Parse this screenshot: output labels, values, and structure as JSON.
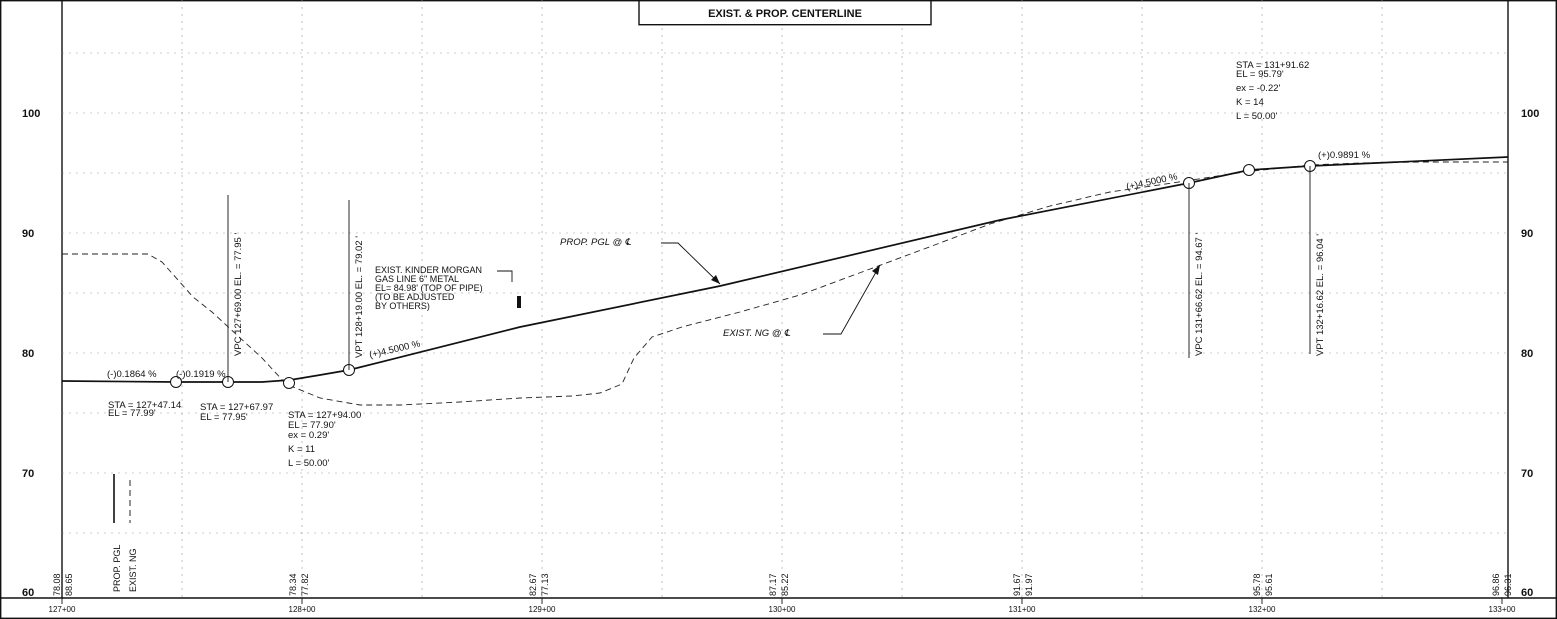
{
  "title": "EXIST. & PROP. CENTERLINE",
  "axis": {
    "stations": [
      "127+00",
      "128+00",
      "129+00",
      "130+00",
      "131+00",
      "132+00",
      "133+00"
    ],
    "elevations_left": [
      "100",
      "90",
      "80",
      "70",
      "60"
    ],
    "elevations_right": [
      "100",
      "90",
      "80",
      "70",
      "60"
    ]
  },
  "bottom_elevations": [
    {
      "a": "78.08",
      "b": "88.65"
    },
    {
      "a": "78.34",
      "b": "77.82"
    },
    {
      "a": "82.67",
      "b": "77.13"
    },
    {
      "a": "87.17",
      "b": "85.22"
    },
    {
      "a": "91.67",
      "b": "91.97"
    },
    {
      "a": "95.78",
      "b": "95.61"
    },
    {
      "a": "96.86",
      "b": "96.31"
    }
  ],
  "legend": {
    "pgl": "PROP. PGL",
    "ng": "EXIST. NG"
  },
  "callouts": {
    "prop_pgl": "PROP. PGL @ ℄",
    "exist_ng": "EXIST. NG @ ℄",
    "kinder": [
      "EXIST. KINDER MORGAN",
      "GAS LINE 6\" METAL",
      "EL= 84.98' (TOP OF PIPE)",
      "(TO BE ADJUSTED",
      "BY OTHERS)"
    ]
  },
  "grades": {
    "g1": "(-)0.1864 %",
    "g2": "(-)0.1919 %",
    "g3": "(+)4.5000 %",
    "g4": "(+)4.5000 %",
    "g5": "(+)0.9891 %"
  },
  "vertical_labels": {
    "vpc1": "VPC 127+69.00 EL. = 77.95 '",
    "vpt1": "VPT 128+19.00 EL. = 79.02 '",
    "vpc2": "VPC 131+66.62 EL. = 94.67 '",
    "vpt2": "VPT 132+16.62 EL. = 96.04 '"
  },
  "notes": {
    "pt1": [
      "STA = 127+47.14",
      "EL  = 77.99'"
    ],
    "pt2": [
      "STA = 127+67.97",
      "EL  = 77.95'"
    ],
    "pvi1": [
      "STA = 127+94.00",
      "EL  = 77.90'",
      "ex = 0.29'",
      "K = 11",
      "L    = 50.00'"
    ],
    "pvi2": [
      "STA = 131+91.62",
      "EL  = 95.79'",
      "ex = -0.22'",
      "K = 14",
      "L    = 50.00'"
    ]
  }
}
